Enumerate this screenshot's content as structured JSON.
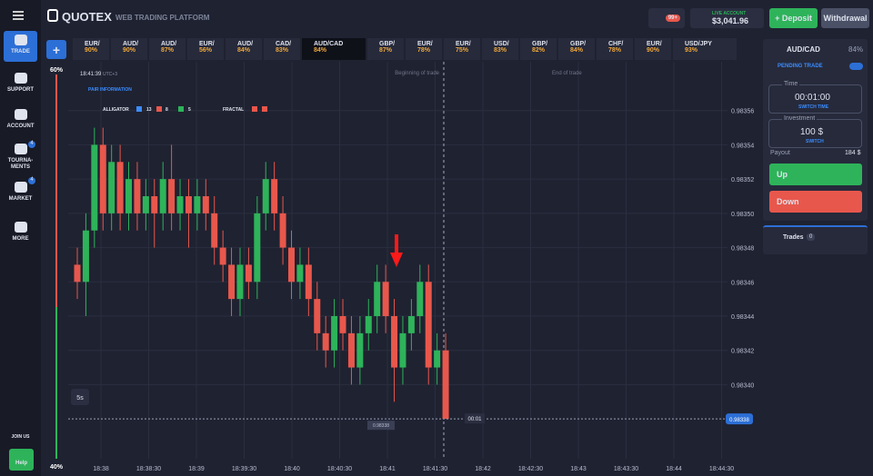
{
  "header": {
    "logo": "QUOTEX",
    "subtitle": "WEB TRADING PLATFORM",
    "notifications": "99+",
    "account_label": "LIVE ACCOUNT",
    "balance": "$3,041.96",
    "deposit": "Deposit",
    "withdrawal": "Withdrawal"
  },
  "sidebar": {
    "items": [
      "TRADE",
      "SUPPORT",
      "ACCOUNT",
      "TOURNA-\nMENTS",
      "MARKET",
      "MORE"
    ],
    "badges": [
      "4",
      "4"
    ],
    "join": "JOIN US",
    "help": "Help"
  },
  "assets": [
    {
      "name": "EUR/",
      "payout": "90%"
    },
    {
      "name": "AUD/",
      "payout": "90%"
    },
    {
      "name": "AUD/",
      "payout": "87%"
    },
    {
      "name": "EUR/",
      "payout": "56%"
    },
    {
      "name": "AUD/",
      "payout": "84%"
    },
    {
      "name": "CAD/",
      "payout": "83%"
    },
    {
      "name": "AUD/CAD",
      "payout": "84%"
    },
    {
      "name": "GBP/",
      "payout": "87%"
    },
    {
      "name": "EUR/",
      "payout": "78%"
    },
    {
      "name": "EUR/",
      "payout": "75%"
    },
    {
      "name": "USD/",
      "payout": "83%"
    },
    {
      "name": "GBP/",
      "payout": "82%"
    },
    {
      "name": "GBP/",
      "payout": "84%"
    },
    {
      "name": "CHF/",
      "payout": "78%"
    },
    {
      "name": "EUR/",
      "payout": "90%"
    },
    {
      "name": "USD/JPY",
      "payout": "93%"
    }
  ],
  "chart": {
    "type": "candlestick",
    "clock": "18:41:39",
    "timezone": "UTC+3",
    "pair_info": "PAIR INFORMATION",
    "indicators": {
      "alligator": "ALLIGATOR",
      "jaw": "13",
      "teeth": "8",
      "lips": "5",
      "fractal": "FRACTAL"
    },
    "begin_label": "Beginning of trade",
    "end_label": "End of trade",
    "up_share": "60%",
    "down_share": "40%",
    "timeframe": "5s",
    "price_badge": "0.98338",
    "timer": "00:01",
    "cursor_label": "0.98338",
    "ylim": [
      0.98337,
      0.98358
    ],
    "yticks": [
      0.98356,
      0.98354,
      0.98352,
      {
        "value": 0.9835,
        "label": "0.98350"
      },
      0.98348,
      0.98346,
      0.98344,
      0.98342,
      {
        "value": 0.9834,
        "label": "0.98340"
      }
    ],
    "xlabels": [
      "18:38",
      "18:38:30",
      "18:39",
      "18:39:30",
      "18:40",
      "18:40:30",
      "18:41",
      "18:41:30",
      "18:42",
      "18:42:30",
      "18:43",
      "18:43:30",
      "18:44",
      "18:44:30"
    ],
    "open": [
      0.98347,
      0.98346,
      0.98349,
      0.98354,
      0.9835,
      0.98353,
      0.9835,
      0.98352,
      0.9835,
      0.98351,
      0.9835,
      0.98352,
      0.9835,
      0.98351,
      0.9835,
      0.98351,
      0.9835,
      0.98348,
      0.98347,
      0.98345,
      0.98347,
      0.98346,
      0.9835,
      0.98352,
      0.9835,
      0.98348,
      0.98346,
      0.98347,
      0.98345,
      0.98343,
      0.98342,
      0.98344,
      0.98343,
      0.98341,
      0.98343,
      0.98344,
      0.98346,
      0.98344,
      0.98341,
      0.98343,
      0.98344,
      0.98346,
      0.98341,
      0.98342
    ],
    "high": [
      0.98348,
      0.9835,
      0.98355,
      0.98355,
      0.98354,
      0.98354,
      0.98353,
      0.98353,
      0.98352,
      0.98352,
      0.98353,
      0.98354,
      0.98352,
      0.98352,
      0.98352,
      0.98352,
      0.98351,
      0.98349,
      0.98348,
      0.98348,
      0.98348,
      0.98351,
      0.98353,
      0.98353,
      0.98351,
      0.98349,
      0.98348,
      0.98348,
      0.98346,
      0.98344,
      0.98345,
      0.98345,
      0.98344,
      0.98344,
      0.98345,
      0.98347,
      0.98347,
      0.98345,
      0.98344,
      0.98345,
      0.98347,
      0.98347,
      0.98343,
      0.98343
    ],
    "low": [
      0.98345,
      0.98344,
      0.98348,
      0.98349,
      0.98349,
      0.98349,
      0.98349,
      0.98349,
      0.98349,
      0.98348,
      0.98349,
      0.98349,
      0.98349,
      0.98348,
      0.98349,
      0.98349,
      0.98347,
      0.98346,
      0.98344,
      0.98344,
      0.98345,
      0.98345,
      0.98349,
      0.98349,
      0.98347,
      0.98345,
      0.98345,
      0.98344,
      0.98342,
      0.98341,
      0.98341,
      0.98342,
      0.9834,
      0.9834,
      0.98342,
      0.98343,
      0.98343,
      0.98339,
      0.9834,
      0.98342,
      0.98343,
      0.9834,
      0.9834,
      0.98338
    ],
    "close": [
      0.98346,
      0.98349,
      0.98354,
      0.9835,
      0.98353,
      0.9835,
      0.98352,
      0.9835,
      0.98351,
      0.9835,
      0.98352,
      0.9835,
      0.98351,
      0.9835,
      0.98351,
      0.9835,
      0.98348,
      0.98347,
      0.98345,
      0.98347,
      0.98346,
      0.9835,
      0.98352,
      0.9835,
      0.98348,
      0.98346,
      0.98347,
      0.98345,
      0.98343,
      0.98342,
      0.98344,
      0.98343,
      0.98341,
      0.98343,
      0.98344,
      0.98346,
      0.98344,
      0.98341,
      0.98343,
      0.98344,
      0.98346,
      0.98341,
      0.98342,
      0.98338
    ],
    "up_color": "#2eb35a",
    "down_color": "#e8574c"
  },
  "panel": {
    "pair": "AUD/CAD",
    "payout_pct": "84%",
    "pending": "PENDING TRADE",
    "time_label": "Time",
    "time": "00:01:00",
    "switch_time": "SWITCH TIME",
    "investment_label": "Investment",
    "investment": "100 $",
    "switch": "SWITCH",
    "payout_label": "Payout",
    "payout": "184 $",
    "up": "Up",
    "down": "Down",
    "trades": "Trades",
    "trades_count": "0"
  }
}
